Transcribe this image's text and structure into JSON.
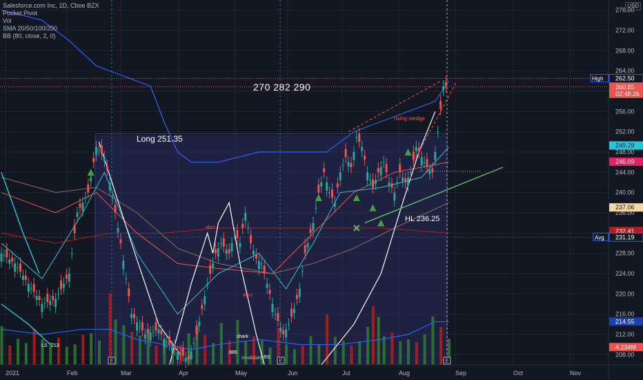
{
  "header": {
    "symbol": "Salesforce.com Inc, 1D, Cboe BZX",
    "indicators": [
      "Pocket Pivot",
      "Vol",
      "SMA 20/50/100/200",
      "BB (80, close, 2, 0)"
    ],
    "currency": "USD"
  },
  "annotations": {
    "targets": "270  282  290",
    "long_entry": "Long 251.35",
    "higher_low": "HL 236.25",
    "rising_wedge": "rising wedge",
    "small_red": [
      "abcc",
      "abcc"
    ],
    "small_white": [
      "LS",
      "213",
      "shark",
      "RS",
      ".886",
      "Invalidated"
    ]
  },
  "price_labels": [
    {
      "text": "High",
      "value": "262.50",
      "color": "#ffffff",
      "bg": "#131722",
      "border": "#2962ff"
    },
    {
      "text": "",
      "value": "260.85\n02:48:26",
      "color": "#ffffff",
      "bg": "#ef5350"
    },
    {
      "text": "",
      "value": "249.29",
      "color": "#131722",
      "bg": "#26c6da"
    },
    {
      "text": "",
      "value": "246.09",
      "color": "#ffffff",
      "bg": "#e91e63"
    },
    {
      "text": "",
      "value": "237.06",
      "color": "#131722",
      "bg": "#f5d7a1"
    },
    {
      "text": "",
      "value": "232.41",
      "color": "#ffffff",
      "bg": "#b71c1c"
    },
    {
      "text": "Avg",
      "value": "231.19",
      "color": "#ffffff",
      "bg": "#131722",
      "border": "#2962ff"
    },
    {
      "text": "",
      "value": "214.55",
      "color": "#ffffff",
      "bg": "#1e40af"
    },
    {
      "text": "",
      "value": "4.234M",
      "color": "#ffffff",
      "bg": "#ef5350"
    }
  ],
  "colors": {
    "background": "#131722",
    "up": "#26a69a",
    "down": "#ef5350",
    "volume_up": "#2e7d32",
    "volume_down": "#b71c1c",
    "bb_band": "#2962ff",
    "shaded_box": "#2a2a5a",
    "grid": "#1f2430"
  },
  "chart_data": {
    "type": "candlestick",
    "title": "Salesforce.com Inc, 1D, Cboe BZX",
    "x_ticks": [
      "2021",
      "Feb",
      "Mar",
      "Apr",
      "May",
      "Jun",
      "Jul",
      "Aug",
      "Sep",
      "Oct",
      "Nov"
    ],
    "y_ticks": [
      208,
      212,
      216,
      220,
      224,
      228,
      232,
      236,
      240,
      244,
      248,
      252,
      256,
      260,
      264,
      268,
      272,
      276
    ],
    "ylim": [
      206,
      278
    ],
    "grid": true,
    "close_path": [
      [
        0,
        228
      ],
      [
        5,
        226
      ],
      [
        10,
        222
      ],
      [
        15,
        218
      ],
      [
        20,
        219
      ],
      [
        25,
        224
      ],
      [
        28,
        236
      ],
      [
        32,
        240
      ],
      [
        35,
        249
      ],
      [
        38,
        247
      ],
      [
        40,
        242
      ],
      [
        44,
        230
      ],
      [
        48,
        216
      ],
      [
        53,
        212
      ],
      [
        58,
        213
      ],
      [
        60,
        211
      ],
      [
        64,
        209
      ],
      [
        69,
        207
      ],
      [
        72,
        212
      ],
      [
        76,
        222
      ],
      [
        79,
        228
      ],
      [
        81,
        230
      ],
      [
        84,
        228
      ],
      [
        86,
        232
      ],
      [
        88,
        230
      ],
      [
        90,
        236
      ],
      [
        92,
        230
      ],
      [
        94,
        227
      ],
      [
        96,
        226
      ],
      [
        98,
        222
      ],
      [
        101,
        216
      ],
      [
        104,
        212
      ],
      [
        106,
        214
      ],
      [
        108,
        217
      ],
      [
        110,
        221
      ],
      [
        112,
        228
      ],
      [
        115,
        234
      ],
      [
        117,
        240
      ],
      [
        119,
        244
      ],
      [
        121,
        240
      ],
      [
        123,
        238
      ],
      [
        125,
        244
      ],
      [
        127,
        247
      ],
      [
        129,
        245
      ],
      [
        131,
        251
      ],
      [
        133,
        249
      ],
      [
        135,
        244
      ],
      [
        137,
        241
      ],
      [
        139,
        244
      ],
      [
        141,
        246
      ],
      [
        143,
        242
      ],
      [
        145,
        240
      ],
      [
        147,
        244
      ],
      [
        149,
        242
      ],
      [
        151,
        244
      ],
      [
        153,
        249
      ],
      [
        155,
        247
      ],
      [
        157,
        245
      ],
      [
        159,
        244
      ],
      [
        161,
        252
      ],
      [
        163,
        261
      ],
      [
        165,
        261
      ]
    ],
    "volume": [
      [
        0,
        6.2
      ],
      [
        3,
        3.1
      ],
      [
        6,
        4.2
      ],
      [
        9,
        3.5
      ],
      [
        12,
        5.8
      ],
      [
        15,
        4.1
      ],
      [
        18,
        3.6
      ],
      [
        21,
        4.4
      ],
      [
        24,
        2.9
      ],
      [
        27,
        3.3
      ],
      [
        30,
        4.8
      ],
      [
        33,
        5.1
      ],
      [
        36,
        3.9
      ],
      [
        40,
        11.5
      ],
      [
        42,
        7.3
      ],
      [
        45,
        6.4
      ],
      [
        48,
        5.3
      ],
      [
        51,
        4.7
      ],
      [
        54,
        5.8
      ],
      [
        57,
        3.1
      ],
      [
        60,
        4.2
      ],
      [
        63,
        3.6
      ],
      [
        66,
        3.2
      ],
      [
        69,
        5.1
      ],
      [
        72,
        6.4
      ],
      [
        75,
        4.8
      ],
      [
        78,
        3.5
      ],
      [
        81,
        6.7
      ],
      [
        84,
        3.9
      ],
      [
        87,
        7.2
      ],
      [
        90,
        3.8
      ],
      [
        93,
        4.6
      ],
      [
        96,
        3.9
      ],
      [
        99,
        2.8
      ],
      [
        102,
        5.9
      ],
      [
        105,
        3.3
      ],
      [
        108,
        2.5
      ],
      [
        111,
        3.1
      ],
      [
        114,
        4.6
      ],
      [
        117,
        3.2
      ],
      [
        120,
        8.1
      ],
      [
        123,
        4.5
      ],
      [
        126,
        3.9
      ],
      [
        129,
        3.1
      ],
      [
        132,
        3.8
      ],
      [
        135,
        6.1
      ],
      [
        137,
        9.4
      ],
      [
        139,
        7.7
      ],
      [
        141,
        4.6
      ],
      [
        144,
        5.2
      ],
      [
        147,
        3.8
      ],
      [
        150,
        4.1
      ],
      [
        153,
        3.6
      ],
      [
        156,
        4.9
      ],
      [
        159,
        7.8
      ],
      [
        162,
        6.1
      ],
      [
        165,
        4.2
      ]
    ],
    "markers": {
      "up_triangles": [
        [
          33,
          244
        ],
        [
          117,
          239
        ],
        [
          131,
          239
        ],
        [
          137,
          237
        ],
        [
          140,
          234
        ],
        [
          150,
          248
        ]
      ],
      "cross": [
        [
          131,
          233
        ]
      ]
    }
  }
}
